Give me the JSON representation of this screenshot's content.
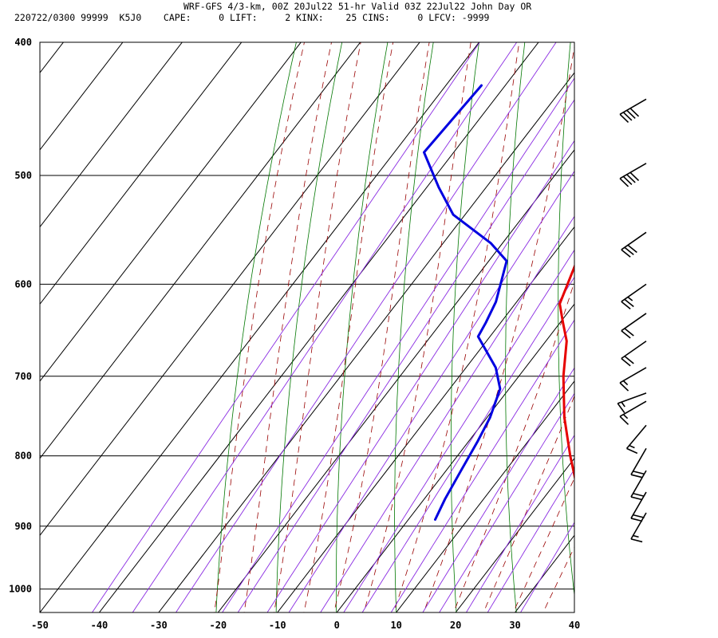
{
  "header": {
    "line1": "WRF-GFS 4/3-km, 00Z 20Jul22 51-hr Valid 03Z 22Jul22 John Day OR",
    "line2": "220722/0300 99999  K5J0    CAPE:     0 LIFT:     2 KINX:    25 CINS:     0 LFCV: -9999"
  },
  "colors": {
    "temperature": "#e60000",
    "dewpoint": "#0000e0",
    "isotherm": "#000000",
    "dry_adiabat": "#007700",
    "moist_adiabat": "#990000",
    "mixing_ratio": "#8a2be2",
    "wind_barb": "#000000"
  },
  "chart_data": {
    "type": "skew-t",
    "x_axis": {
      "label": "",
      "range": [
        -50,
        40
      ],
      "ticks": [
        "-50",
        "-40",
        "-30",
        "-20",
        "-10",
        "0",
        "10",
        "20",
        "30",
        "40"
      ]
    },
    "y_axis": {
      "label": "",
      "scale": "log",
      "range": [
        1040,
        400
      ],
      "ticks": [
        "400",
        "500",
        "600",
        "700",
        "800",
        "900",
        "1000"
      ]
    },
    "grid": true,
    "series": [
      {
        "key": "temperature",
        "points": [
          {
            "p": 890,
            "t": 29
          },
          {
            "p": 880,
            "t": 28
          },
          {
            "p": 850,
            "t": 25
          },
          {
            "p": 800,
            "t": 19
          },
          {
            "p": 750,
            "t": 13
          },
          {
            "p": 700,
            "t": 7.5
          },
          {
            "p": 660,
            "t": 3.5
          },
          {
            "p": 640,
            "t": 0.5
          },
          {
            "p": 620,
            "t": -2.5
          },
          {
            "p": 580,
            "t": -5
          },
          {
            "p": 550,
            "t": -7.5
          },
          {
            "p": 520,
            "t": -10
          },
          {
            "p": 480,
            "t": -14
          },
          {
            "p": 450,
            "t": -18
          },
          {
            "p": 430,
            "t": -21
          }
        ]
      },
      {
        "key": "dewpoint",
        "points": [
          {
            "p": 890,
            "t": 4.5
          },
          {
            "p": 860,
            "t": 3.5
          },
          {
            "p": 820,
            "t": 2.5
          },
          {
            "p": 780,
            "t": 1.5
          },
          {
            "p": 750,
            "t": 0.5
          },
          {
            "p": 715,
            "t": -1.5
          },
          {
            "p": 690,
            "t": -5
          },
          {
            "p": 655,
            "t": -12
          },
          {
            "p": 640,
            "t": -12.5
          },
          {
            "p": 618,
            "t": -13.5
          },
          {
            "p": 577,
            "t": -17
          },
          {
            "p": 560,
            "t": -22
          },
          {
            "p": 534,
            "t": -32
          },
          {
            "p": 510,
            "t": -38
          },
          {
            "p": 481,
            "t": -45
          },
          {
            "p": 430,
            "t": -44
          }
        ]
      }
    ],
    "wind_barbs": [
      {
        "p": 880,
        "dir": 210,
        "spd": 15
      },
      {
        "p": 850,
        "dir": 210,
        "spd": 20
      },
      {
        "p": 820,
        "dir": 210,
        "spd": 20
      },
      {
        "p": 790,
        "dir": 210,
        "spd": 20
      },
      {
        "p": 760,
        "dir": 220,
        "spd": 15
      },
      {
        "p": 730,
        "dir": 240,
        "spd": 15
      },
      {
        "p": 720,
        "dir": 250,
        "spd": 15
      },
      {
        "p": 690,
        "dir": 240,
        "spd": 15
      },
      {
        "p": 660,
        "dir": 235,
        "spd": 20
      },
      {
        "p": 630,
        "dir": 235,
        "spd": 20
      },
      {
        "p": 600,
        "dir": 235,
        "spd": 25
      },
      {
        "p": 550,
        "dir": 235,
        "spd": 30
      },
      {
        "p": 490,
        "dir": 240,
        "spd": 40
      },
      {
        "p": 440,
        "dir": 240,
        "spd": 40
      }
    ]
  }
}
